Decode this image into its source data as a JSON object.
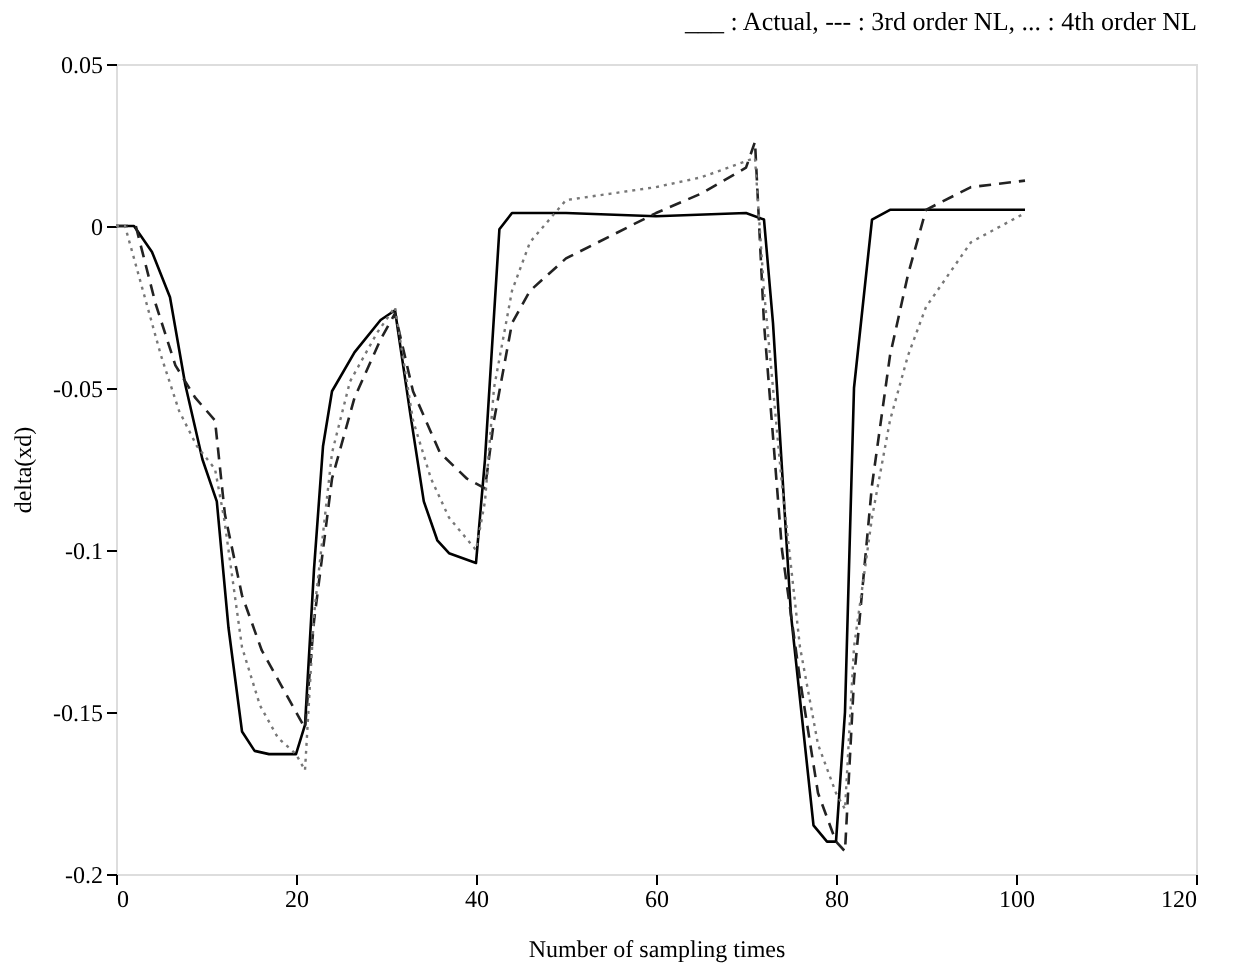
{
  "chart_data": {
    "type": "line",
    "title": "___ : Actual, --- : 3rd order NL, ... : 4th order NL",
    "xlabel": "Number of sampling times",
    "ylabel": "delta(xd)",
    "xlim": [
      0,
      120
    ],
    "xticks": [
      0,
      20,
      40,
      60,
      80,
      100,
      120
    ],
    "ylim": [
      -0.2,
      0.05
    ],
    "yticks": [
      -0.2,
      -0.15,
      -0.1,
      -0.05,
      0,
      0.05
    ],
    "grid": false,
    "series": [
      {
        "color": "#000000",
        "line_style": "solid",
        "x": [
          0,
          2,
          4,
          6,
          7.7,
          9.6,
          11.2,
          12.5,
          14,
          15.4,
          17,
          20,
          21,
          22,
          23,
          24,
          26.5,
          29.4,
          31,
          32.7,
          34.2,
          35.7,
          37,
          40,
          41,
          42.6,
          44,
          50,
          60,
          70,
          72,
          73,
          75,
          77.5,
          79,
          80,
          81,
          82,
          84,
          86,
          101
        ],
        "values": [
          0,
          0,
          -0.008,
          -0.022,
          -0.049,
          -0.072,
          -0.085,
          -0.124,
          -0.156,
          -0.162,
          -0.163,
          -0.163,
          -0.154,
          -0.106,
          -0.068,
          -0.051,
          -0.039,
          -0.029,
          -0.026,
          -0.058,
          -0.085,
          -0.097,
          -0.101,
          -0.104,
          -0.072,
          -0.001,
          0.004,
          0.004,
          0.003,
          0.004,
          0.002,
          -0.03,
          -0.12,
          -0.185,
          -0.19,
          -0.19,
          -0.15,
          -0.05,
          0.002,
          0.005,
          0.005
        ]
      },
      {
        "color": "#222222",
        "line_style": "dashed",
        "x": [
          0,
          2.2,
          4.4,
          6.6,
          8.8,
          11,
          12.1,
          14,
          16.2,
          18.4,
          20,
          21,
          22,
          24,
          26.5,
          29.4,
          31,
          33,
          36,
          39,
          41,
          42,
          44,
          46,
          50,
          55,
          60,
          65,
          70,
          71,
          72,
          74,
          76,
          78,
          80,
          81,
          82,
          84,
          86,
          88,
          90,
          95,
          101
        ],
        "values": [
          0,
          0,
          -0.024,
          -0.043,
          -0.053,
          -0.06,
          -0.089,
          -0.114,
          -0.131,
          -0.142,
          -0.15,
          -0.155,
          -0.122,
          -0.078,
          -0.053,
          -0.035,
          -0.027,
          -0.051,
          -0.07,
          -0.078,
          -0.081,
          -0.06,
          -0.03,
          -0.02,
          -0.01,
          -0.003,
          0.004,
          0.01,
          0.018,
          0.026,
          -0.03,
          -0.1,
          -0.14,
          -0.175,
          -0.19,
          -0.193,
          -0.14,
          -0.08,
          -0.04,
          -0.015,
          0.005,
          0.012,
          0.014
        ]
      },
      {
        "color": "#777777",
        "line_style": "dotted",
        "x": [
          0,
          1,
          3,
          5,
          7,
          9,
          11,
          12,
          14,
          16,
          18,
          20,
          21,
          22,
          24,
          26,
          29,
          31,
          33,
          35,
          37,
          40,
          41,
          42,
          44,
          46,
          50,
          55,
          60,
          65,
          70,
          71,
          72,
          74,
          76,
          78,
          80,
          81,
          82,
          84,
          86,
          88,
          90,
          95,
          101
        ],
        "values": [
          0,
          0,
          -0.02,
          -0.04,
          -0.057,
          -0.068,
          -0.075,
          -0.09,
          -0.13,
          -0.148,
          -0.158,
          -0.163,
          -0.168,
          -0.12,
          -0.07,
          -0.048,
          -0.033,
          -0.025,
          -0.06,
          -0.078,
          -0.09,
          -0.1,
          -0.085,
          -0.05,
          -0.02,
          -0.005,
          0.008,
          0.01,
          0.012,
          0.015,
          0.02,
          0.021,
          -0.02,
          -0.08,
          -0.13,
          -0.16,
          -0.175,
          -0.18,
          -0.13,
          -0.09,
          -0.06,
          -0.04,
          -0.025,
          -0.005,
          0.004
        ]
      }
    ]
  }
}
